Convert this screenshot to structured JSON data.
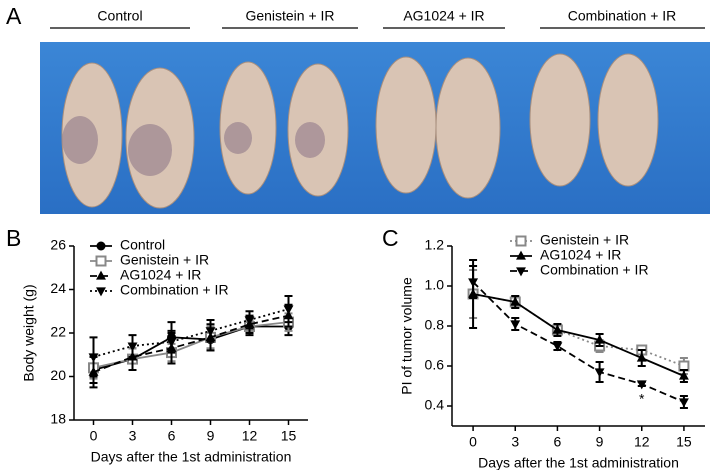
{
  "panel_labels": [
    "A",
    "B",
    "C"
  ],
  "photo": {
    "groups": [
      "Control",
      "Genistein + IR",
      "AG1024 + IR",
      "Combination + IR"
    ]
  },
  "chart_data": [
    {
      "type": "line",
      "xlabel": "Days after the 1st administration",
      "ylabel": "Body weight (g)",
      "x": [
        0,
        3,
        6,
        9,
        12,
        15
      ],
      "xlim": [
        -1.5,
        16.5
      ],
      "xticks": [
        0,
        3,
        6,
        9,
        12,
        15
      ],
      "ylim": [
        18,
        26
      ],
      "yticks": [
        18,
        20,
        22,
        24,
        26
      ],
      "legend": "upper left",
      "series": [
        {
          "name": "Control",
          "color": "#000000",
          "dash": "solid",
          "marker": "circle",
          "values": [
            20.3,
            20.8,
            21.8,
            21.7,
            22.3,
            22.3
          ],
          "errors": [
            0.6,
            0.5,
            0.7,
            0.5,
            0.4,
            0.4
          ]
        },
        {
          "name": "Genistein + IR",
          "color": "#888888",
          "dash": "solid",
          "marker": "square-open",
          "values": [
            20.4,
            20.8,
            21.1,
            21.8,
            22.3,
            22.5
          ],
          "errors": [
            0.5,
            0.5,
            0.4,
            0.5,
            0.3,
            0.4
          ]
        },
        {
          "name": "AG1024 + IR",
          "color": "#000000",
          "dash": "dashed",
          "marker": "triangle",
          "values": [
            20.2,
            20.9,
            21.3,
            21.8,
            22.4,
            22.8
          ],
          "errors": [
            0.7,
            0.6,
            0.7,
            0.6,
            0.4,
            0.5
          ]
        },
        {
          "name": "Combination + IR",
          "color": "#000000",
          "dash": "dotted",
          "marker": "triangle-down",
          "values": [
            20.9,
            21.4,
            21.6,
            22.1,
            22.6,
            23.1
          ],
          "errors": [
            0.9,
            0.5,
            0.5,
            0.5,
            0.4,
            0.6
          ]
        }
      ]
    },
    {
      "type": "line",
      "xlabel": "Days after the 1st administration",
      "ylabel": "PI of tumor volume",
      "x": [
        0,
        3,
        6,
        9,
        12,
        15
      ],
      "xlim": [
        -1.5,
        16.5
      ],
      "xticks": [
        0,
        3,
        6,
        9,
        12,
        15
      ],
      "ylim": [
        0.3,
        1.2
      ],
      "yticks": [
        0.4,
        0.6,
        0.8,
        {
          "value": 1,
          "label": "1.0"
        },
        1.2
      ],
      "legend": "upper right",
      "series": [
        {
          "name": "Genistein + IR",
          "color": "#888888",
          "dash": "dotted",
          "marker": "square-open",
          "values": [
            0.96,
            0.92,
            0.78,
            0.7,
            0.68,
            0.6
          ],
          "errors": [
            0.12,
            0.03,
            0.02,
            0.03,
            0.02,
            0.04
          ]
        },
        {
          "name": "AG1024 + IR",
          "color": "#000000",
          "dash": "solid",
          "marker": "triangle",
          "values": [
            0.96,
            0.92,
            0.78,
            0.73,
            0.64,
            0.55
          ],
          "errors": [
            0.17,
            0.03,
            0.03,
            0.03,
            0.04,
            0.03
          ]
        },
        {
          "name": "Combination + IR",
          "color": "#000000",
          "dash": "dashed",
          "marker": "triangle-down",
          "values": [
            1.02,
            0.81,
            0.7,
            0.57,
            0.51,
            0.42
          ],
          "errors": [
            0.08,
            0.03,
            0.02,
            0.05,
            0.01,
            0.03
          ]
        }
      ],
      "annotations": [
        {
          "text": "*",
          "x": 12
        }
      ]
    }
  ]
}
